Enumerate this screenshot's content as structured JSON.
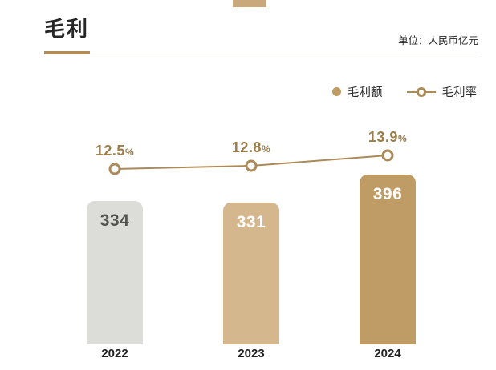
{
  "header": {
    "title": "毛利",
    "unit": "单位：人民币亿元"
  },
  "legend": {
    "bar_label": "毛利额",
    "line_label": "毛利率"
  },
  "chart_data": {
    "type": "bar+line",
    "title": "毛利",
    "unit": "人民币亿元",
    "categories": [
      "2022",
      "2023",
      "2024"
    ],
    "series": [
      {
        "name": "毛利额",
        "type": "bar",
        "values": [
          334,
          331,
          396
        ]
      },
      {
        "name": "毛利率",
        "type": "line",
        "values": [
          12.5,
          12.8,
          13.9
        ],
        "value_suffix": "%"
      }
    ],
    "bar_colors": [
      "#dcdcd8",
      "#d5b78e",
      "#bf9c66"
    ],
    "bar_value_colors": [
      "#53534e",
      "#ffffff",
      "#ffffff"
    ],
    "line_color": "#ab8a57",
    "rate_label_color": "#9c7d4b",
    "legend_position": "top-right",
    "grid": false,
    "xlabel": "",
    "ylabel": ""
  },
  "colors": {
    "accent": "#b08d5b",
    "background": "#ffffff",
    "top_tab": "#c9a97b",
    "rule": "#e7e4de"
  }
}
